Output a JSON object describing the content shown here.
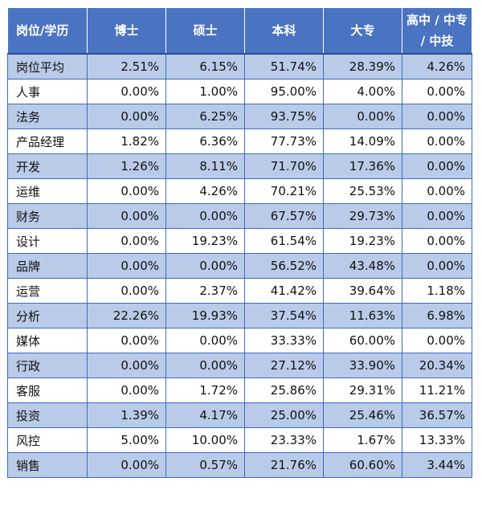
{
  "header": {
    "position": "岗位/学历",
    "doctor": "博士",
    "master": "硕士",
    "bachelor": "本科",
    "college": "大专",
    "highschool": "高中 / 中专 / 中技"
  },
  "rows": [
    {
      "role": "岗位平均",
      "doctor": "2.51%",
      "master": "6.15%",
      "bachelor": "51.74%",
      "college": "28.39%",
      "highschool": "4.26%"
    },
    {
      "role": "人事",
      "doctor": "0.00%",
      "master": "1.00%",
      "bachelor": "95.00%",
      "college": "4.00%",
      "highschool": "0.00%"
    },
    {
      "role": "法务",
      "doctor": "0.00%",
      "master": "6.25%",
      "bachelor": "93.75%",
      "college": "0.00%",
      "highschool": "0.00%"
    },
    {
      "role": "产品经理",
      "doctor": "1.82%",
      "master": "6.36%",
      "bachelor": "77.73%",
      "college": "14.09%",
      "highschool": "0.00%"
    },
    {
      "role": "开发",
      "doctor": "1.26%",
      "master": "8.11%",
      "bachelor": "71.70%",
      "college": "17.36%",
      "highschool": "0.00%"
    },
    {
      "role": "运维",
      "doctor": "0.00%",
      "master": "4.26%",
      "bachelor": "70.21%",
      "college": "25.53%",
      "highschool": "0.00%"
    },
    {
      "role": "财务",
      "doctor": "0.00%",
      "master": "0.00%",
      "bachelor": "67.57%",
      "college": "29.73%",
      "highschool": "0.00%"
    },
    {
      "role": "设计",
      "doctor": "0.00%",
      "master": "19.23%",
      "bachelor": "61.54%",
      "college": "19.23%",
      "highschool": "0.00%"
    },
    {
      "role": "品牌",
      "doctor": "0.00%",
      "master": "0.00%",
      "bachelor": "56.52%",
      "college": "43.48%",
      "highschool": "0.00%"
    },
    {
      "role": "运营",
      "doctor": "0.00%",
      "master": "2.37%",
      "bachelor": "41.42%",
      "college": "39.64%",
      "highschool": "1.18%"
    },
    {
      "role": "分析",
      "doctor": "22.26%",
      "master": "19.93%",
      "bachelor": "37.54%",
      "college": "11.63%",
      "highschool": "6.98%"
    },
    {
      "role": "媒体",
      "doctor": "0.00%",
      "master": "0.00%",
      "bachelor": "33.33%",
      "college": "60.00%",
      "highschool": "0.00%"
    },
    {
      "role": "行政",
      "doctor": "0.00%",
      "master": "0.00%",
      "bachelor": "27.12%",
      "college": "33.90%",
      "highschool": "20.34%"
    },
    {
      "role": "客服",
      "doctor": "0.00%",
      "master": "1.72%",
      "bachelor": "25.86%",
      "college": "29.31%",
      "highschool": "11.21%"
    },
    {
      "role": "投资",
      "doctor": "1.39%",
      "master": "4.17%",
      "bachelor": "25.00%",
      "college": "25.46%",
      "highschool": "36.57%"
    },
    {
      "role": "风控",
      "doctor": "5.00%",
      "master": "10.00%",
      "bachelor": "23.33%",
      "college": "1.67%",
      "highschool": "13.33%"
    },
    {
      "role": "销售",
      "doctor": "0.00%",
      "master": "0.57%",
      "bachelor": "21.76%",
      "college": "60.60%",
      "highschool": "3.44%"
    }
  ]
}
